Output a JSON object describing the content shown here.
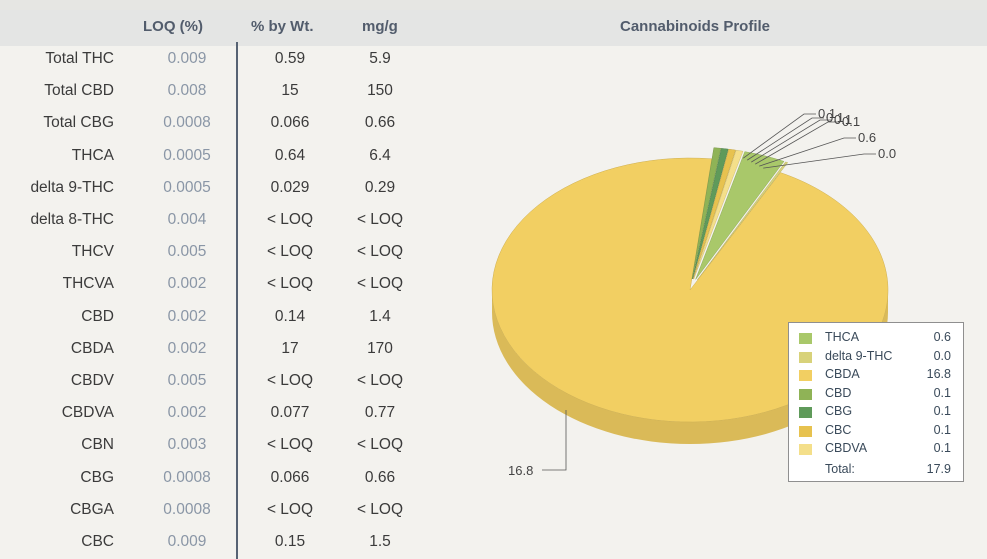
{
  "table": {
    "headers": {
      "loq": "LOQ (%)",
      "pct": "% by Wt.",
      "mg": "mg/g"
    },
    "rows": [
      {
        "name": "Total THC",
        "loq": "0.009",
        "pct": "0.59",
        "mg": "5.9"
      },
      {
        "name": "Total CBD",
        "loq": "0.008",
        "pct": "15",
        "mg": "150"
      },
      {
        "name": "Total CBG",
        "loq": "0.0008",
        "pct": "0.066",
        "mg": "0.66"
      },
      {
        "name": "THCA",
        "loq": "0.0005",
        "pct": "0.64",
        "mg": "6.4"
      },
      {
        "name": "delta 9-THC",
        "loq": "0.0005",
        "pct": "0.029",
        "mg": "0.29"
      },
      {
        "name": "delta 8-THC",
        "loq": "0.004",
        "pct": "< LOQ",
        "mg": "< LOQ"
      },
      {
        "name": "THCV",
        "loq": "0.005",
        "pct": "< LOQ",
        "mg": "< LOQ"
      },
      {
        "name": "THCVA",
        "loq": "0.002",
        "pct": "< LOQ",
        "mg": "< LOQ"
      },
      {
        "name": "CBD",
        "loq": "0.002",
        "pct": "0.14",
        "mg": "1.4"
      },
      {
        "name": "CBDA",
        "loq": "0.002",
        "pct": "17",
        "mg": "170"
      },
      {
        "name": "CBDV",
        "loq": "0.005",
        "pct": "< LOQ",
        "mg": "< LOQ"
      },
      {
        "name": "CBDVA",
        "loq": "0.002",
        "pct": "0.077",
        "mg": "0.77"
      },
      {
        "name": "CBN",
        "loq": "0.003",
        "pct": "< LOQ",
        "mg": "< LOQ"
      },
      {
        "name": "CBG",
        "loq": "0.0008",
        "pct": "0.066",
        "mg": "0.66"
      },
      {
        "name": "CBGA",
        "loq": "0.0008",
        "pct": "< LOQ",
        "mg": "< LOQ"
      },
      {
        "name": "CBC",
        "loq": "0.009",
        "pct": "0.15",
        "mg": "1.5"
      }
    ]
  },
  "chart_data": {
    "type": "pie",
    "title": "Cannabinoids Profile",
    "slices": [
      {
        "name": "THCA",
        "value": 0.6,
        "color": "#a9c86a"
      },
      {
        "name": "delta 9-THC",
        "value": 0.0,
        "color": "#d8d27a"
      },
      {
        "name": "CBDA",
        "value": 16.8,
        "color": "#f2cf62"
      },
      {
        "name": "CBD",
        "value": 0.1,
        "color": "#8fb356"
      },
      {
        "name": "CBG",
        "value": 0.1,
        "color": "#5f9a5a"
      },
      {
        "name": "CBC",
        "value": 0.1,
        "color": "#e7c24f"
      },
      {
        "name": "CBDVA",
        "value": 0.1,
        "color": "#f4df8a"
      }
    ],
    "callouts": [
      "0.1",
      "0.1",
      "0.1",
      "0.1",
      "0.6",
      "0.0",
      "16.8"
    ],
    "legend": {
      "position": "bottom-right",
      "entries": [
        {
          "label": "THCA",
          "value": "0.6"
        },
        {
          "label": "delta 9-THC",
          "value": "0.0"
        },
        {
          "label": "CBDA",
          "value": "16.8"
        },
        {
          "label": "CBD",
          "value": "0.1"
        },
        {
          "label": "CBG",
          "value": "0.1"
        },
        {
          "label": "CBC",
          "value": "0.1"
        },
        {
          "label": "CBDVA",
          "value": "0.1"
        }
      ],
      "total_label": "Total:",
      "total_value": "17.9"
    }
  }
}
